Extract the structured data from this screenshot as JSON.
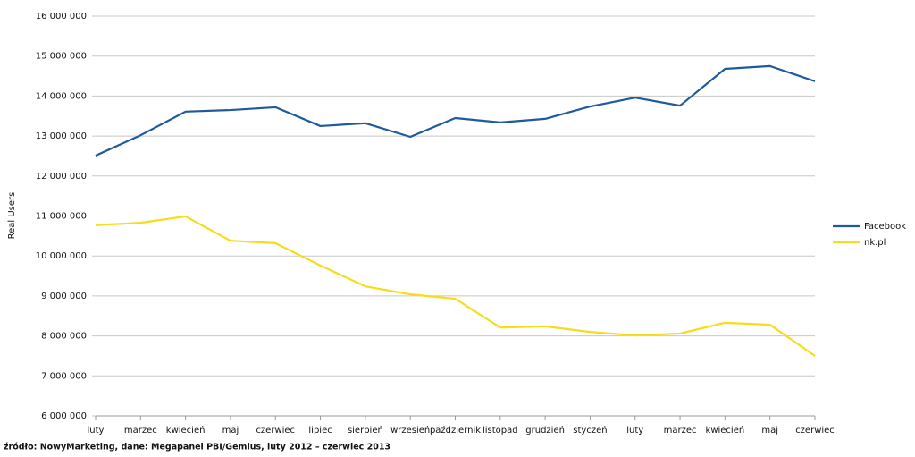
{
  "chart_data": {
    "type": "line",
    "y_label": "Real Users",
    "source": "źródło: NowyMarketing, dane: Megapanel PBI/Gemius, luty 2012 – czerwiec 2013",
    "categories": [
      "luty",
      "marzec",
      "kwiecień",
      "maj",
      "czerwiec",
      "lipiec",
      "sierpień",
      "wrzesień",
      "październik",
      "listopad",
      "grudzień",
      "styczeń",
      "luty",
      "marzec",
      "kwiecień",
      "maj",
      "czerwiec"
    ],
    "series": [
      {
        "name": "Facebook",
        "color": "#1f5b9c",
        "values": [
          12510000,
          13020000,
          13610000,
          13650000,
          13720000,
          13250000,
          13320000,
          12980000,
          13450000,
          13340000,
          13430000,
          13740000,
          13960000,
          13760000,
          14680000,
          14750000,
          14370000
        ]
      },
      {
        "name": "nk.pl",
        "color": "#f7dc1c",
        "values": [
          10770000,
          10830000,
          10990000,
          10380000,
          10320000,
          9760000,
          9240000,
          9040000,
          8930000,
          8210000,
          8240000,
          8100000,
          8010000,
          8060000,
          8330000,
          8280000,
          7500000
        ]
      }
    ],
    "ylim": [
      6000000,
      16000000
    ],
    "yticks": [
      {
        "value": 6000000,
        "label": "6 000 000"
      },
      {
        "value": 7000000,
        "label": "7 000 000"
      },
      {
        "value": 8000000,
        "label": "8 000 000"
      },
      {
        "value": 9000000,
        "label": "9 000 000"
      },
      {
        "value": 10000000,
        "label": "10 000 000"
      },
      {
        "value": 11000000,
        "label": "11 000 000"
      },
      {
        "value": 12000000,
        "label": "12 000 000"
      },
      {
        "value": 13000000,
        "label": "13 000 000"
      },
      {
        "value": 14000000,
        "label": "14 000 000"
      },
      {
        "value": 15000000,
        "label": "15 000 000"
      },
      {
        "value": 16000000,
        "label": "16 000 000"
      }
    ],
    "grid": true,
    "legend": "right"
  }
}
